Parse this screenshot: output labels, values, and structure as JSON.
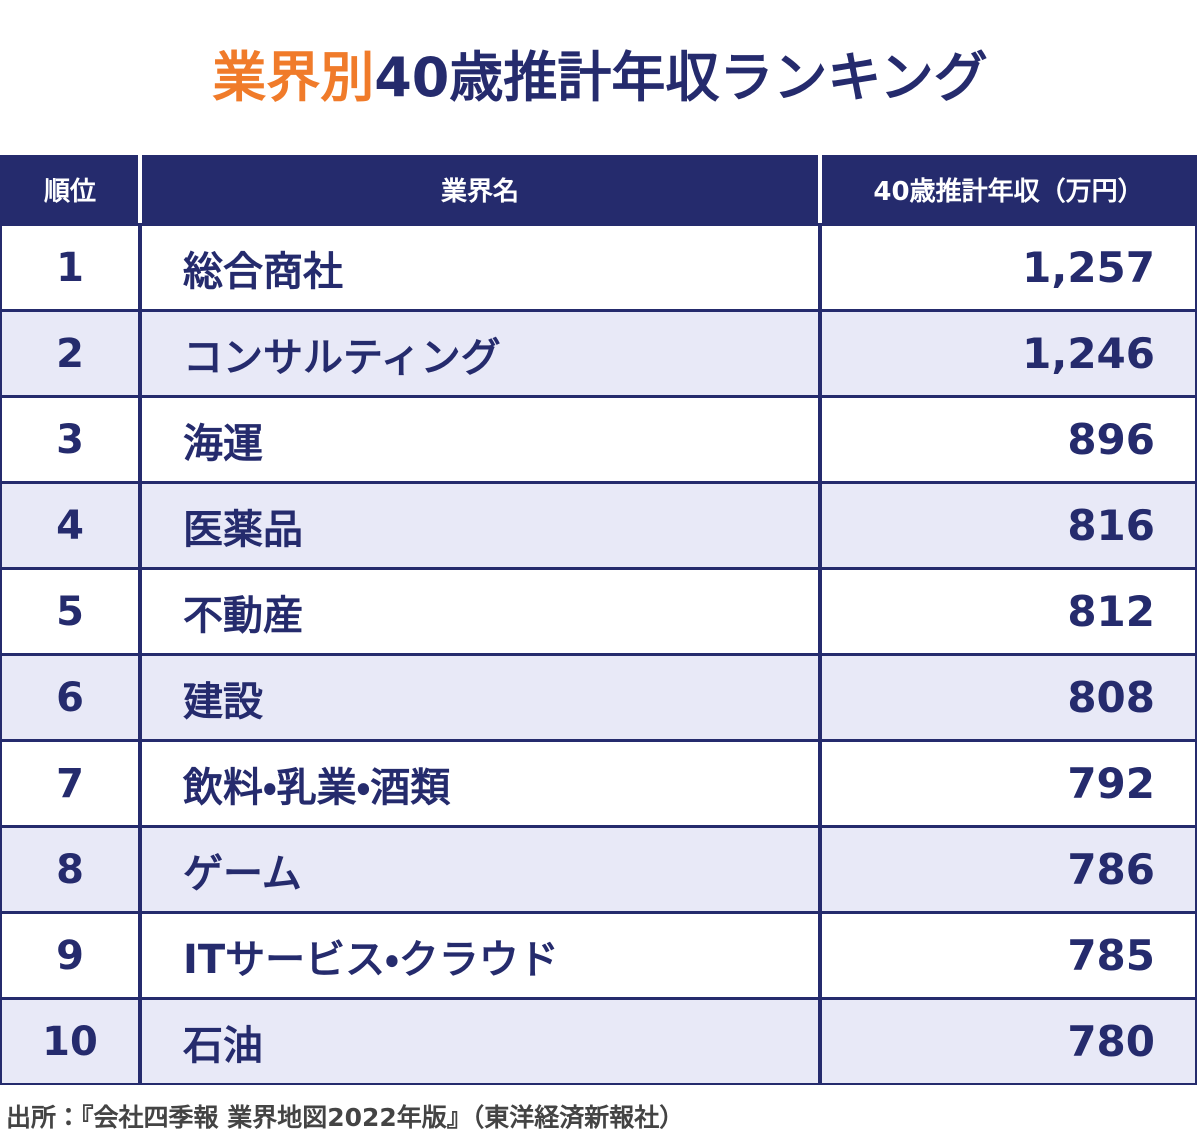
{
  "header": {
    "title_highlight": "業界別",
    "title_main": "40歳推計年収ランキング"
  },
  "table": {
    "columns": [
      "順位",
      "業界名",
      "40歳推計年収（万円）"
    ],
    "rows": [
      [
        "1",
        "総合商社",
        "1,257"
      ],
      [
        "2",
        "コンサルティング",
        "1,246"
      ],
      [
        "3",
        "海運",
        "896"
      ],
      [
        "4",
        "医薬品",
        "816"
      ],
      [
        "5",
        "不動産",
        "812"
      ],
      [
        "6",
        "建設",
        "808"
      ],
      [
        "7",
        "飲料・乳業・酒類",
        "792"
      ],
      [
        "8",
        "ゲーム",
        "786"
      ],
      [
        "9",
        "ITサービス・クラウド",
        "785"
      ],
      [
        "10",
        "石油",
        "780"
      ]
    ]
  },
  "footer": {
    "source": "出所：『会社四季報 業界地図2022年版』（東洋経済新報社）"
  }
}
